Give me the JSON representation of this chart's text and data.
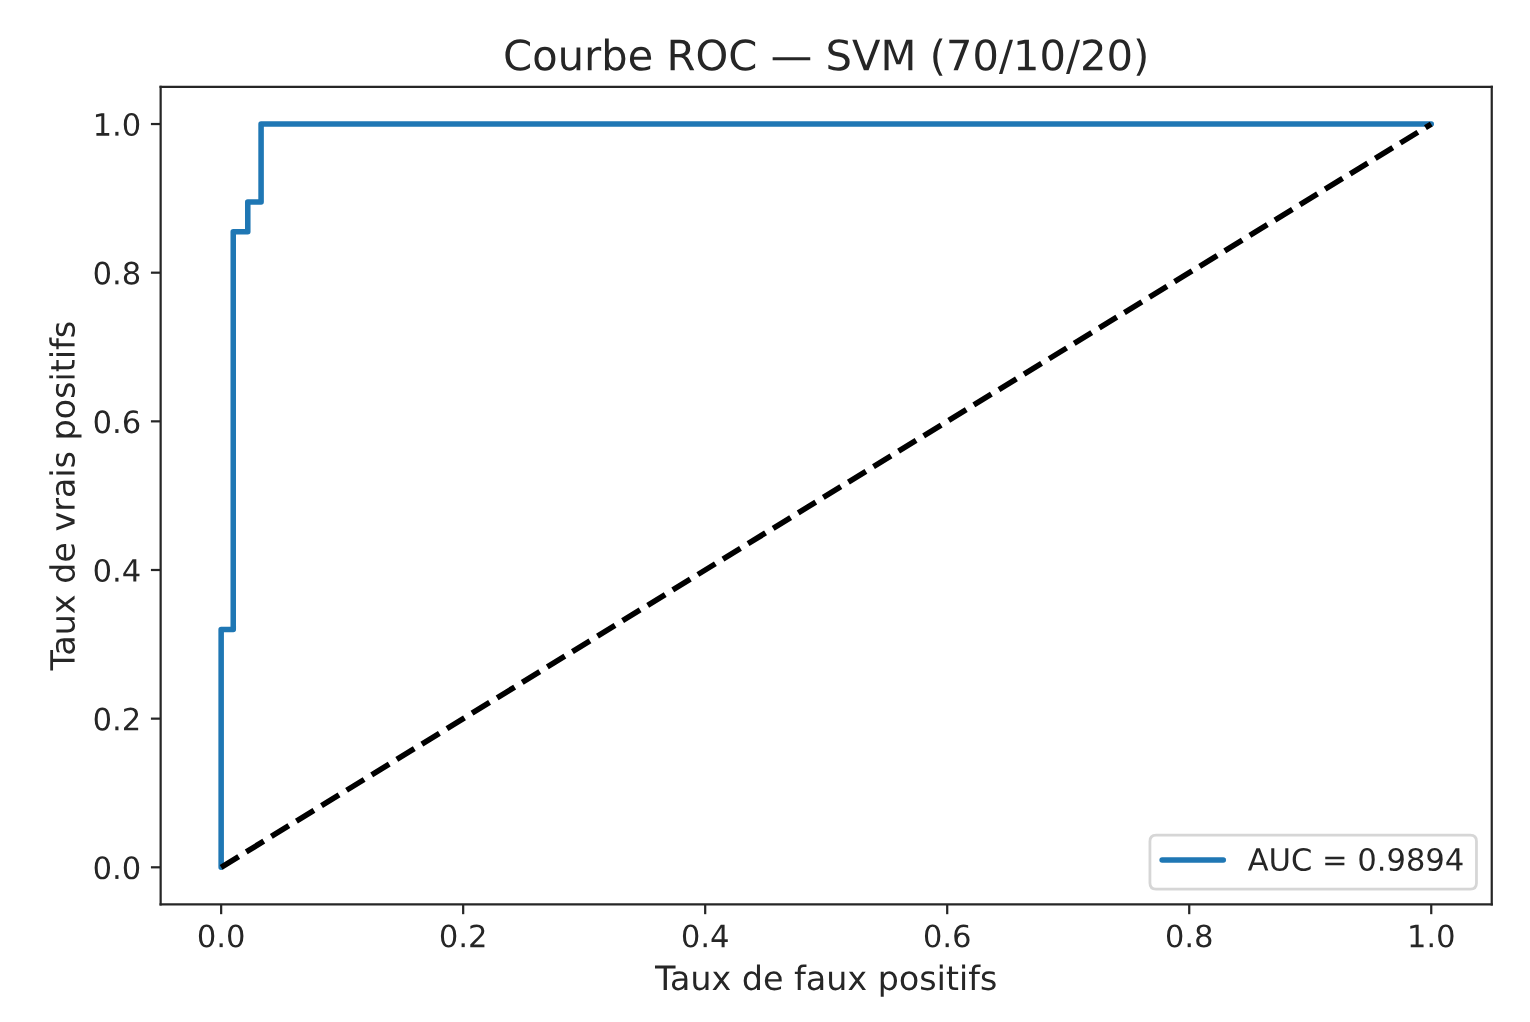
{
  "chart_data": {
    "type": "line",
    "title": "Courbe ROC — SVM (70/10/20)",
    "xlabel": "Taux de faux positifs",
    "ylabel": "Taux de vrais positifs",
    "xlim": [
      -0.05,
      1.05
    ],
    "ylim": [
      -0.05,
      1.05
    ],
    "xticks": [
      {
        "value": 0,
        "label": "0.0"
      },
      0.2,
      0.4,
      0.6,
      0.8,
      {
        "value": 1,
        "label": "1.0"
      }
    ],
    "yticks": [
      {
        "value": 0,
        "label": "0.0"
      },
      0.2,
      0.4,
      0.6,
      0.8,
      {
        "value": 1,
        "label": "1.0"
      }
    ],
    "series": [
      {
        "name": "AUC = 0.9894",
        "color": "#1f77b4",
        "line_style": "solid",
        "x": [
          0,
          0,
          0.01,
          0.01,
          0.022,
          0.022,
          0.033,
          0.033,
          1
        ],
        "values": [
          0,
          0.32,
          0.32,
          0.855,
          0.855,
          0.895,
          0.895,
          1,
          1
        ]
      },
      {
        "color": "#000000",
        "line_style": "dashed",
        "x": [
          0,
          1
        ],
        "values": [
          0,
          1
        ]
      }
    ],
    "legend": "lower right",
    "grid": false
  }
}
